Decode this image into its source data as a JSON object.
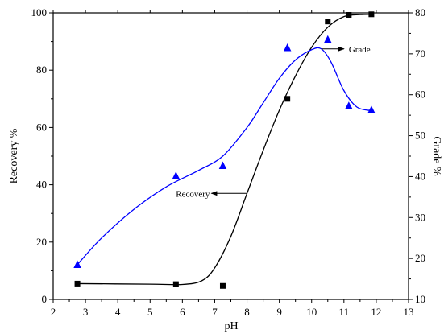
{
  "chart_data": {
    "type": "scatter",
    "title": "",
    "xlabel": "pH",
    "ylabel_left": "Recovery %",
    "ylabel_right": "Grade %",
    "xlim": [
      2,
      13
    ],
    "ylim_left": [
      0,
      100
    ],
    "ylim_right": [
      10,
      80
    ],
    "x_ticks": [
      2,
      3,
      4,
      5,
      6,
      7,
      8,
      9,
      10,
      11,
      12,
      13
    ],
    "y_left_ticks": [
      0,
      20,
      40,
      60,
      80,
      100
    ],
    "y_right_ticks": [
      10,
      20,
      30,
      40,
      50,
      60,
      70,
      80
    ],
    "grid": false,
    "series": [
      {
        "name": "Recovery",
        "axis": "left",
        "marker": "square",
        "marker_color": "#000000",
        "line_color": "#000000",
        "x": [
          2.75,
          5.8,
          7.25,
          9.25,
          10.5,
          11.15,
          11.85
        ],
        "y": [
          5.5,
          5.3,
          4.7,
          70,
          97,
          99.3,
          99.5
        ],
        "fit_curve": [
          [
            2.75,
            5.5
          ],
          [
            5.0,
            5.3
          ],
          [
            6.0,
            5.2
          ],
          [
            6.6,
            6.5
          ],
          [
            7.0,
            11
          ],
          [
            7.5,
            22
          ],
          [
            8.0,
            37
          ],
          [
            8.5,
            52
          ],
          [
            9.0,
            66
          ],
          [
            9.5,
            78
          ],
          [
            10.0,
            88
          ],
          [
            10.5,
            95
          ],
          [
            11.0,
            98.7
          ],
          [
            11.5,
            99.4
          ],
          [
            11.85,
            99.5
          ]
        ]
      },
      {
        "name": "Grade",
        "axis": "right",
        "marker": "triangle",
        "marker_color": "#0000ff",
        "line_color": "#0000ff",
        "x": [
          2.75,
          5.8,
          7.25,
          9.25,
          10.5,
          11.15,
          11.85
        ],
        "y": [
          18.5,
          40.2,
          42.7,
          71.5,
          73.5,
          57.3,
          56.3
        ],
        "fit_curve": [
          [
            2.75,
            18.5
          ],
          [
            3.5,
            25
          ],
          [
            4.5,
            32
          ],
          [
            5.5,
            37.5
          ],
          [
            6.5,
            41.5
          ],
          [
            7.25,
            45
          ],
          [
            8.0,
            52
          ],
          [
            8.5,
            58
          ],
          [
            9.0,
            64
          ],
          [
            9.5,
            68.5
          ],
          [
            10.0,
            71
          ],
          [
            10.3,
            71.2
          ],
          [
            10.6,
            68
          ],
          [
            11.0,
            61
          ],
          [
            11.4,
            57
          ],
          [
            11.85,
            56.1
          ]
        ]
      }
    ],
    "annotations": [
      {
        "text": "Recovery",
        "axis": "left",
        "arrow_from": [
          8.0,
          37
        ],
        "arrow_to": [
          6.9,
          37
        ]
      },
      {
        "text": "Grade",
        "axis": "right",
        "arrow_from": [
          10.3,
          71.2
        ],
        "arrow_to": [
          11.0,
          71.2
        ]
      }
    ]
  }
}
